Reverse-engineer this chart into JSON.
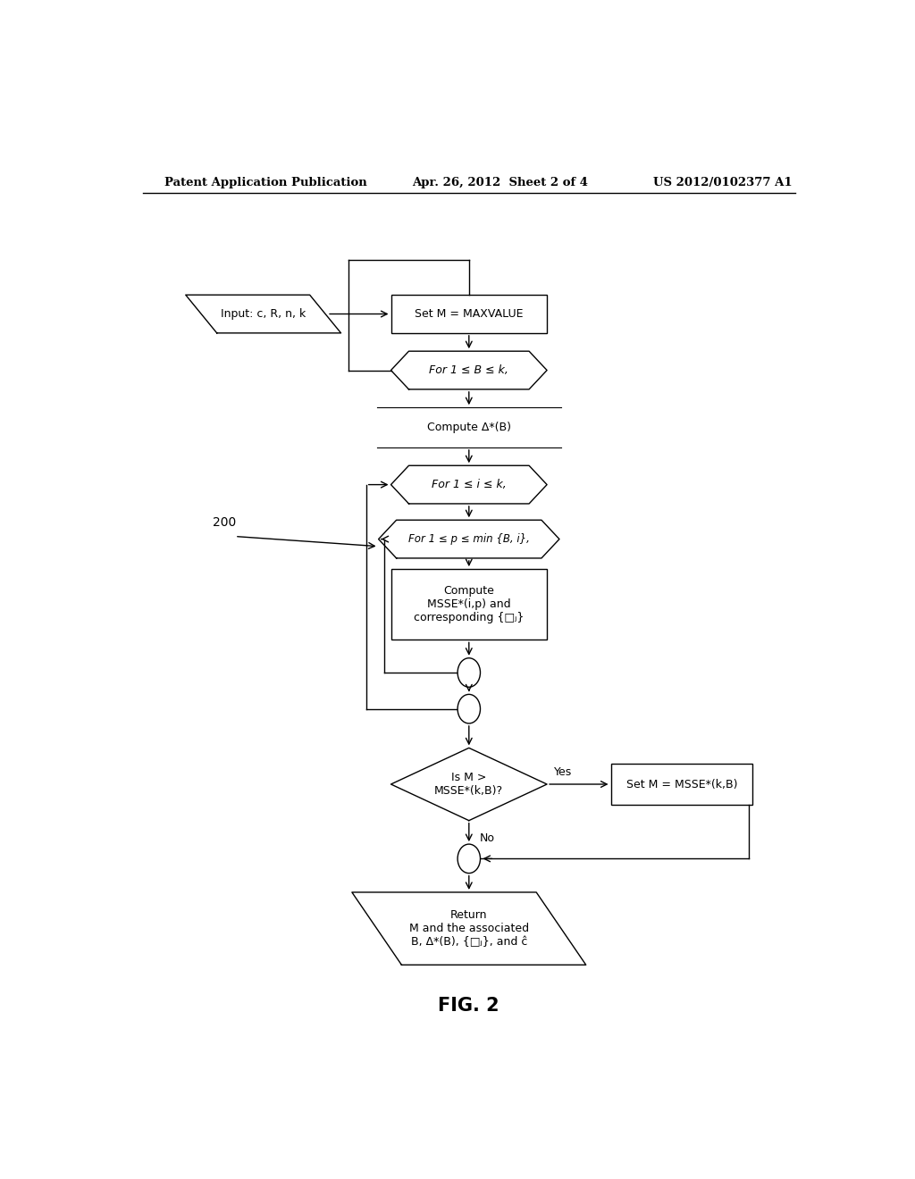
{
  "bg_color": "#ffffff",
  "header_left": "Patent Application Publication",
  "header_center": "Apr. 26, 2012  Sheet 2 of 4",
  "header_right": "US 2012/0102377 A1",
  "fig_label": "FIG. 2",
  "label_200": "200"
}
